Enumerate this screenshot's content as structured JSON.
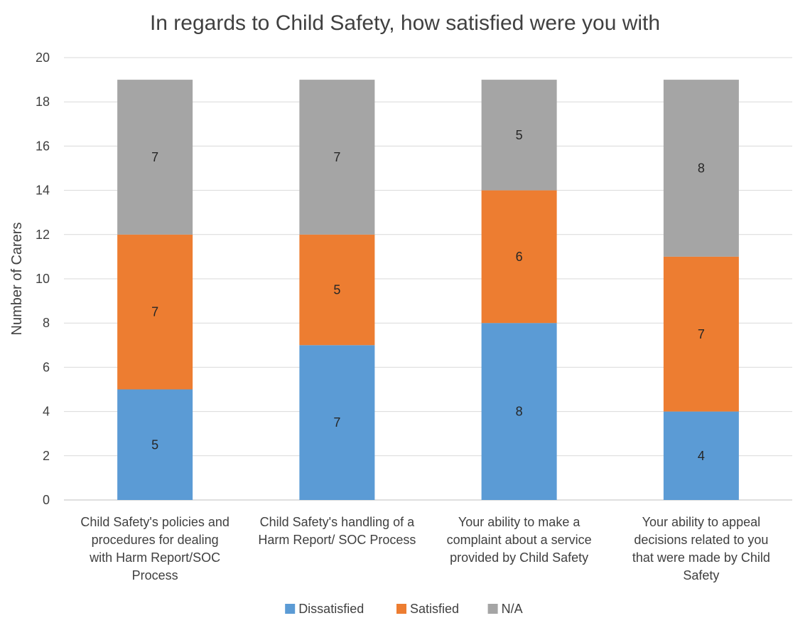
{
  "chart_data": {
    "type": "bar",
    "stacked": true,
    "title": "In regards to Child Safety, how satisfied were you with",
    "xlabel": "",
    "ylabel": "Number of Carers",
    "ylim": [
      0,
      20
    ],
    "yticks": [
      0,
      2,
      4,
      6,
      8,
      10,
      12,
      14,
      16,
      18,
      20
    ],
    "grid": true,
    "legend_position": "bottom",
    "categories": [
      [
        "Child Safety's policies and",
        "procedures for dealing",
        "with Harm Report/SOC",
        "Process"
      ],
      [
        "Child Safety's handling of a",
        "Harm Report/ SOC Process"
      ],
      [
        "Your ability to make a",
        "complaint about a service",
        "provided by Child Safety"
      ],
      [
        "Your ability to appeal",
        "decisions related to you",
        "that were made by Child",
        "Safety"
      ]
    ],
    "series": [
      {
        "name": "Dissatisfied",
        "color": "#5b9bd5",
        "values": [
          5,
          7,
          8,
          4
        ]
      },
      {
        "name": "Satisfied",
        "color": "#ed7d31",
        "values": [
          7,
          5,
          6,
          7
        ]
      },
      {
        "name": "N/A",
        "color": "#a5a5a5",
        "values": [
          7,
          7,
          5,
          8
        ]
      }
    ]
  }
}
